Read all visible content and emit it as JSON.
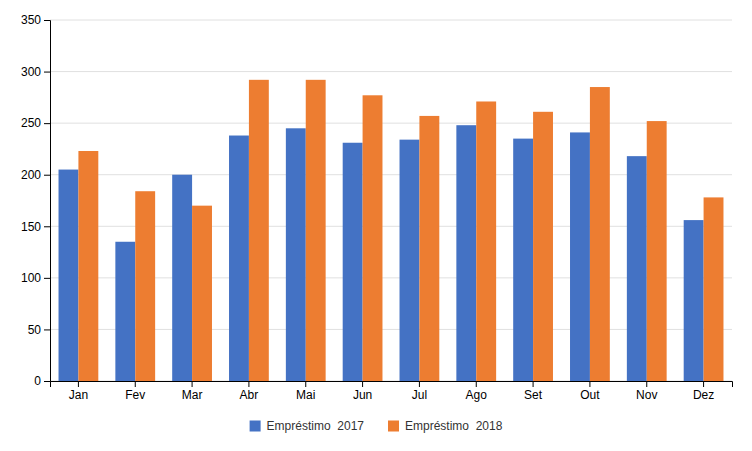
{
  "chart_data": {
    "type": "bar",
    "categories": [
      "Jan",
      "Fev",
      "Mar",
      "Abr",
      "Mai",
      "Jun",
      "Jul",
      "Ago",
      "Set",
      "Out",
      "Nov",
      "Dez"
    ],
    "series": [
      {
        "name": "Empréstimo  2017",
        "color": "#4472c4",
        "values": [
          205,
          135,
          200,
          238,
          245,
          231,
          234,
          248,
          235,
          241,
          218,
          156
        ]
      },
      {
        "name": "Empréstimo  2018",
        "color": "#ed7d31",
        "values": [
          223,
          184,
          170,
          292,
          292,
          277,
          257,
          271,
          261,
          285,
          252,
          178
        ]
      }
    ],
    "ylim": [
      0,
      350
    ],
    "yticks": [
      0,
      50,
      100,
      150,
      200,
      250,
      300,
      350
    ],
    "grid": true,
    "legend": "bottom"
  }
}
